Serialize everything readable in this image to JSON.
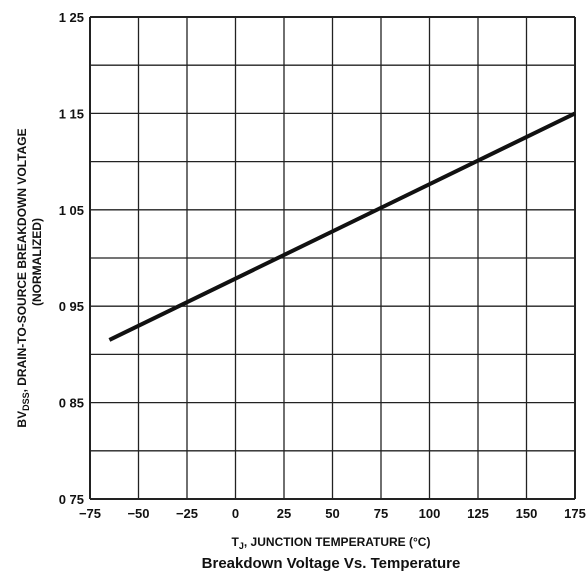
{
  "chart_data": {
    "type": "line",
    "title": "Breakdown Voltage Vs. Temperature",
    "xlabel": "T",
    "xlabel_sub": "J",
    "xlabel_rest": ", JUNCTION TEMPERATURE (°C)",
    "ylabel_main": "BV",
    "ylabel_sub": "DSS",
    "ylabel_rest": ", DRAIN-TO-SOURCE BREAKDOWN VOLTAGE",
    "ylabel_line2": "(NORMALIZED)",
    "xlim": [
      -75,
      175
    ],
    "ylim": [
      0.75,
      1.25
    ],
    "x_ticks": [
      "−75",
      "−50",
      "−25",
      "0",
      "25",
      "50",
      "75",
      "100",
      "125",
      "150",
      "175"
    ],
    "x_tick_values": [
      -75,
      -50,
      -25,
      0,
      25,
      50,
      75,
      100,
      125,
      150,
      175
    ],
    "y_ticks": [
      "0 75",
      "0 85",
      "0 95",
      "1 05",
      "1 15",
      "1 25"
    ],
    "y_tick_values": [
      0.75,
      0.85,
      0.95,
      1.05,
      1.15,
      1.25
    ],
    "grid": true,
    "series": [
      {
        "points": [
          [
            -65,
            0.915
          ],
          [
            175,
            1.15
          ]
        ]
      }
    ]
  }
}
